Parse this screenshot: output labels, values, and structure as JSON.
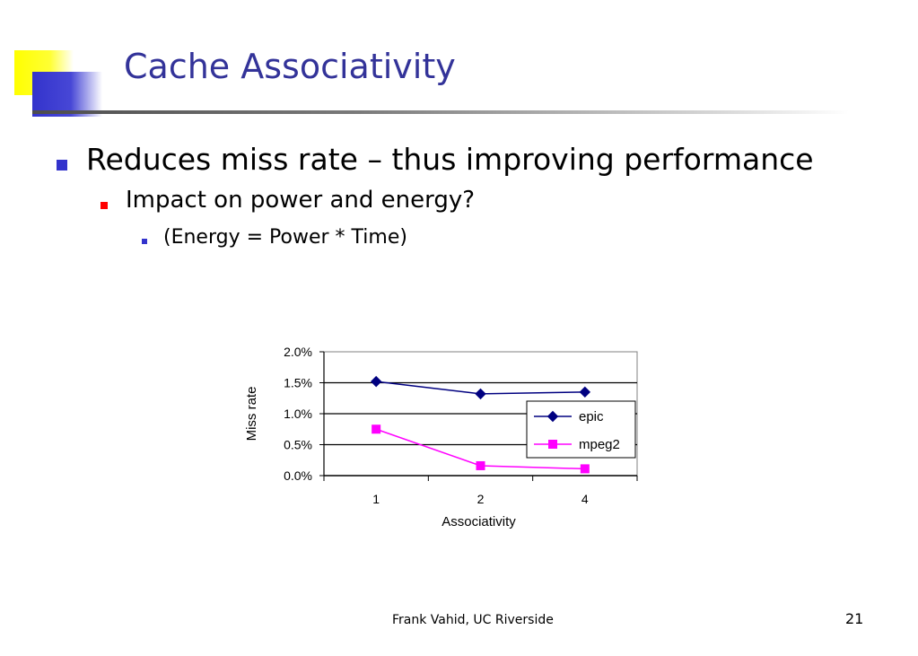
{
  "slide": {
    "title": "Cache Associativity",
    "bullets": [
      "Reduces miss rate – thus improving performance",
      "Impact on power and energy?",
      "(Energy = Power * Time)"
    ],
    "footer": "Frank Vahid, UC Riverside",
    "page_number": "21"
  },
  "colors": {
    "title": "#333399",
    "epic": "#000080",
    "mpeg2": "#ff00ff",
    "accent_yellow": "#ffff00",
    "accent_blue": "#3333cc"
  },
  "chart_data": {
    "type": "line",
    "categories": [
      "1",
      "2",
      "4"
    ],
    "xlabel": "Associativity",
    "ylabel": "Miss rate",
    "ylim": [
      0.0,
      2.0
    ],
    "yticks": [
      0.0,
      0.5,
      1.0,
      1.5,
      2.0
    ],
    "ytick_labels": [
      "0.0%",
      "0.5%",
      "1.0%",
      "1.5%",
      "2.0%"
    ],
    "gridlines": true,
    "legend": "right",
    "series": [
      {
        "name": "epic",
        "values": [
          1.52,
          1.32,
          1.35
        ],
        "marker": "diamond",
        "color": "#000080"
      },
      {
        "name": "mpeg2",
        "values": [
          0.75,
          0.16,
          0.11
        ],
        "marker": "square",
        "color": "#ff00ff"
      }
    ]
  }
}
